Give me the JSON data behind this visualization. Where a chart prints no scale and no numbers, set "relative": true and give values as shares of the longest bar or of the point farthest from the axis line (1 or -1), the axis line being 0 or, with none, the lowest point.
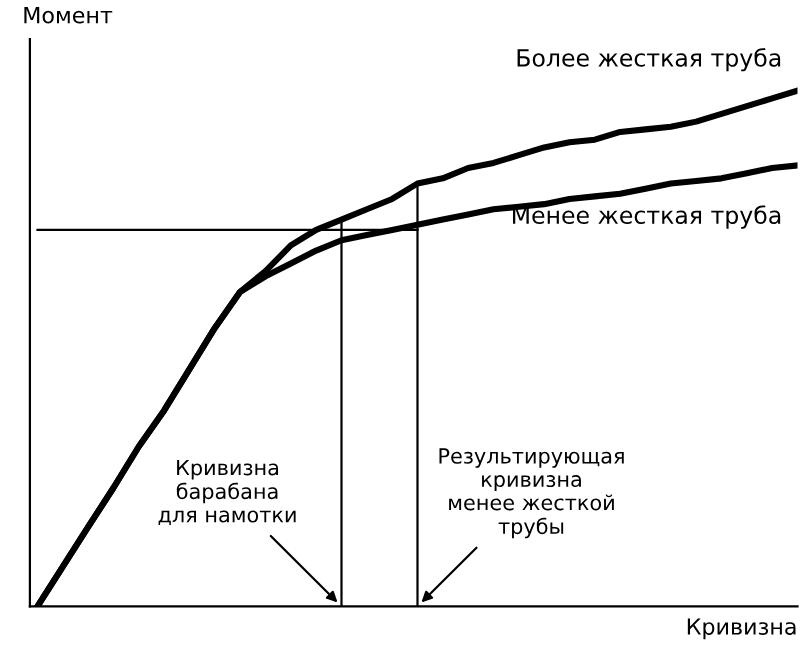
{
  "chart_data": {
    "type": "line",
    "relative": true,
    "xlabel": "Кривизна",
    "ylabel": "Момент",
    "categories": [
      null,
      null,
      null,
      null,
      null,
      null,
      null,
      null,
      null,
      null,
      null,
      null,
      null,
      null,
      null,
      null,
      null,
      null,
      null,
      null,
      null,
      null,
      null,
      null,
      null,
      null,
      null,
      null,
      null,
      null,
      null
    ],
    "series": [
      {
        "name": "Более жесткая труба",
        "color": "#000000",
        "values": [
          0,
          0.077,
          0.154,
          0.23,
          0.31,
          0.38,
          0.46,
          0.54,
          0.61,
          0.65,
          0.7,
          0.73,
          0.75,
          0.77,
          0.79,
          0.82,
          0.83,
          0.85,
          0.86,
          0.875,
          0.89,
          0.9,
          0.905,
          0.92,
          0.925,
          0.93,
          0.94,
          0.955,
          0.97,
          0.985,
          1.0
        ]
      },
      {
        "name": "Менее жесткая труба",
        "color": "#000000",
        "values": [
          0,
          0.077,
          0.154,
          0.23,
          0.31,
          0.38,
          0.46,
          0.54,
          0.61,
          0.64,
          0.665,
          0.69,
          0.71,
          0.72,
          0.73,
          0.74,
          0.75,
          0.76,
          0.77,
          0.775,
          0.78,
          0.79,
          0.795,
          0.8,
          0.81,
          0.82,
          0.825,
          0.83,
          0.84,
          0.85,
          0.855
        ]
      },
      {
        "color": "#000000",
        "values": [
          0.73,
          0.73,
          0.73,
          0.73,
          0.73,
          0.73,
          0.73,
          0.73,
          0.73,
          0.73,
          0.73,
          0.73,
          0.73,
          0.73,
          0.73,
          0.73,
          null,
          null,
          null,
          null,
          null,
          null,
          null,
          null,
          null,
          null,
          null,
          null,
          null,
          null,
          null
        ]
      }
    ],
    "annotations": [
      "Кривизна\nбарабана\nдля намотки",
      "Результирующая\nкривизна\nменее жесткой\nтрубы"
    ],
    "marker": "none",
    "line_style": "solid"
  }
}
